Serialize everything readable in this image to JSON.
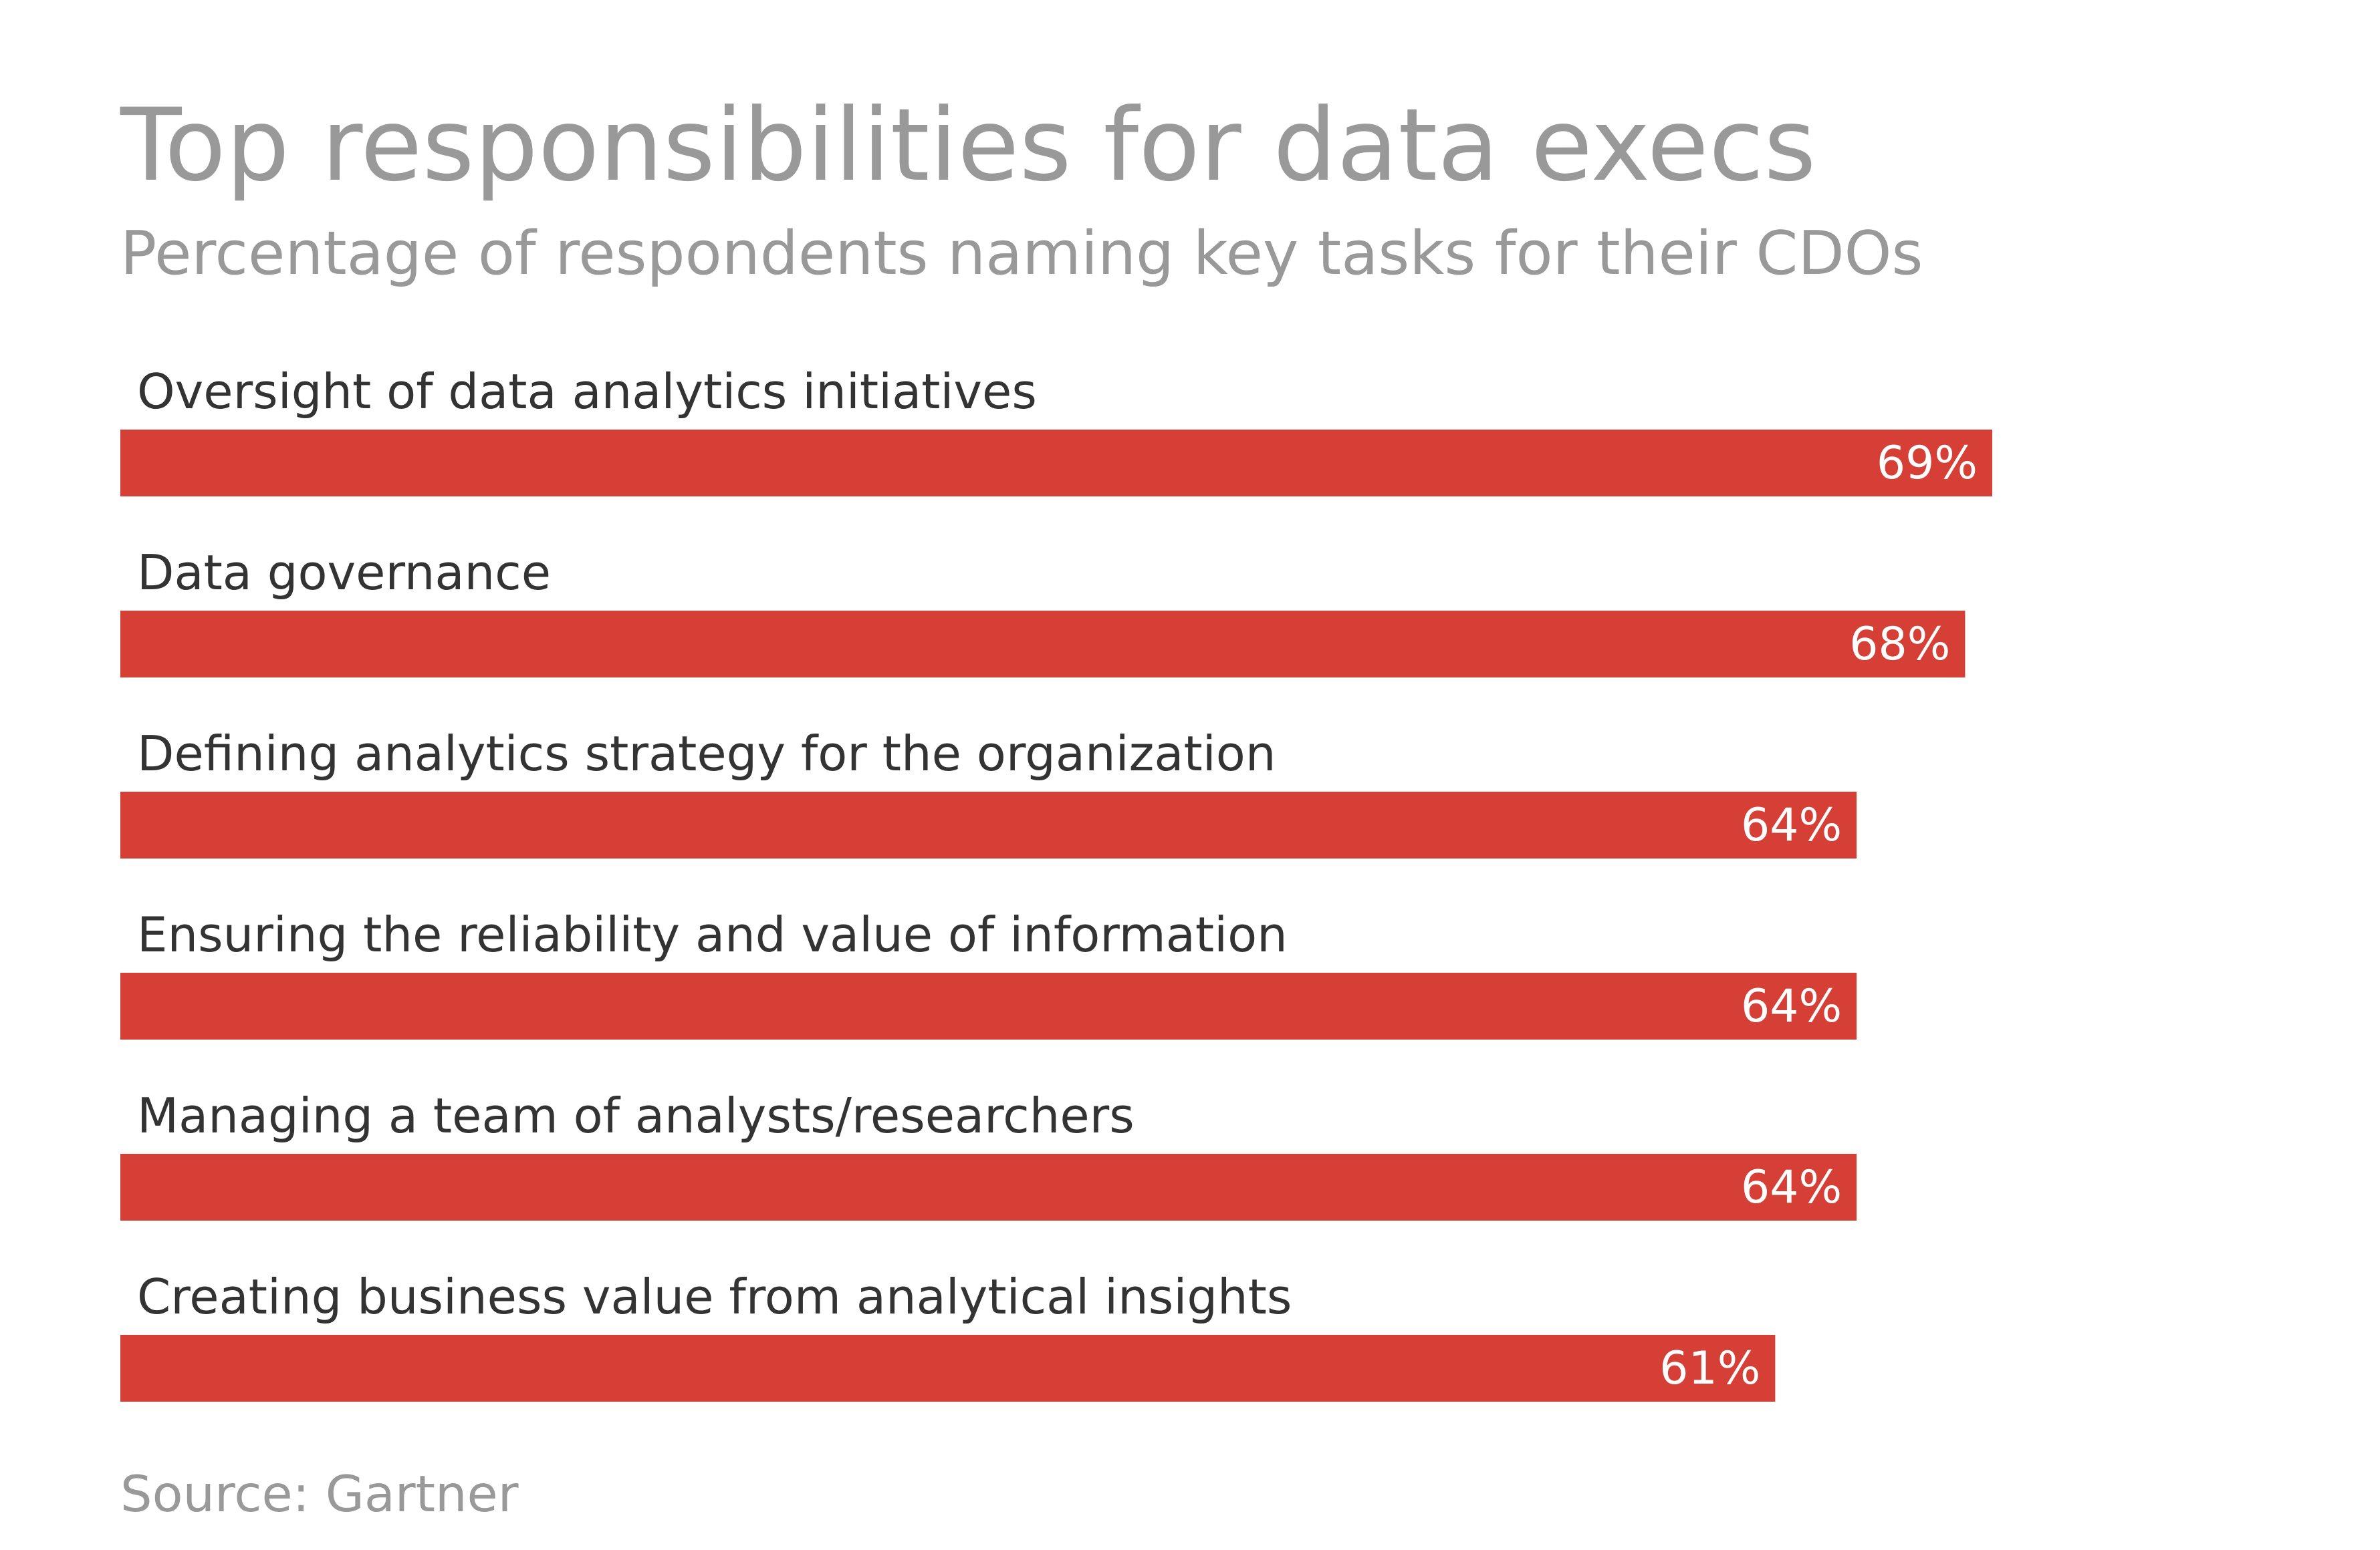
{
  "chart_data": {
    "type": "bar",
    "orientation": "horizontal",
    "title": "Top responsibilities for data execs",
    "subtitle": "Percentage of respondents naming key tasks for their CDOs",
    "categories": [
      "Oversight of data analytics initiatives",
      "Data governance",
      "Defining analytics strategy for the organization",
      "Ensuring the reliability and value of information",
      "Managing a team of analysts/researchers",
      "Creating business value from analytical insights"
    ],
    "values": [
      69,
      68,
      64,
      64,
      64,
      61
    ],
    "value_labels": [
      "69%",
      "68%",
      "64%",
      "64%",
      "64%",
      "61%"
    ],
    "color": "#d63f35",
    "source": "Source: Gartner"
  }
}
